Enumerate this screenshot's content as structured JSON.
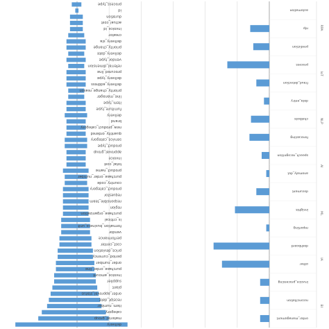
{
  "colors": {
    "bar": "#5b9bd5",
    "grid": "#d9d9d9",
    "axis": "#9a9a9a",
    "text": "#444444"
  },
  "chart_data": [
    {
      "type": "bar",
      "orientation": "horizontal",
      "grid": true,
      "categories": [
        "process_type",
        "id",
        "duration",
        "actual_cost",
        "invoice_id",
        "creator",
        "delivery_sla",
        "priority_change",
        "delivery_date",
        "vendor_type",
        "referral_dimension",
        "procured_line",
        "delivery_type",
        "delivery_address",
        "priority_change_reason",
        "line_manager",
        "item_type",
        "furniture_type",
        "delivery",
        "brand",
        "new_product_category",
        "quantity_ordered",
        "service_category",
        "product_type",
        "approval_group",
        "invoice",
        "total_cost",
        "product_name",
        "purchase_order_number",
        "country_code",
        "product_category",
        "requestor",
        "responsible_team",
        "region",
        "purchase_organization",
        "is_critical",
        "formation_business_unit",
        "vendor",
        "performance",
        "cost_center",
        "price_deviation",
        "period_currency",
        "order_number",
        "purchase_order_line",
        "invoice_amount",
        "supplier",
        "plant",
        "order_approval_status",
        "receipt_date",
        "item_number",
        "category",
        "material_group",
        "delivery"
      ],
      "values": [
        3,
        1,
        4,
        4,
        4,
        5,
        6,
        6,
        5,
        6,
        5,
        6,
        6,
        6,
        5,
        5,
        6,
        6,
        7,
        6,
        6,
        6,
        7,
        7,
        6,
        6,
        6,
        8,
        7,
        7,
        8,
        8,
        8,
        8,
        8,
        9,
        9,
        9,
        10,
        10,
        11,
        11,
        12,
        12,
        13,
        13,
        14,
        15,
        16,
        17,
        20,
        22,
        35
      ],
      "xlim": [
        0,
        60
      ]
    },
    {
      "type": "bar",
      "orientation": "horizontal",
      "grid": true,
      "groups": [
        "RPA",
        "IoT",
        "NLP",
        "AI",
        "ML",
        "IA",
        "BI"
      ],
      "categories": [
        "automation",
        "nlp",
        "prediction",
        "process",
        "fraud_detection",
        "data_entry",
        "chatbots",
        "forecasting",
        "speech_recognition",
        "anomaly_det",
        "document",
        "insights",
        "reporting",
        "dashboard",
        "other",
        "invoice_processing",
        "reconciliation",
        "order_management"
      ],
      "values": [
        0,
        -25,
        -21,
        -55,
        -17,
        -7,
        -24,
        -26,
        -10,
        -4,
        -17,
        -45,
        -4,
        -73,
        -62,
        -12,
        -12,
        -12
      ],
      "xlim": [
        -80,
        0
      ]
    }
  ]
}
